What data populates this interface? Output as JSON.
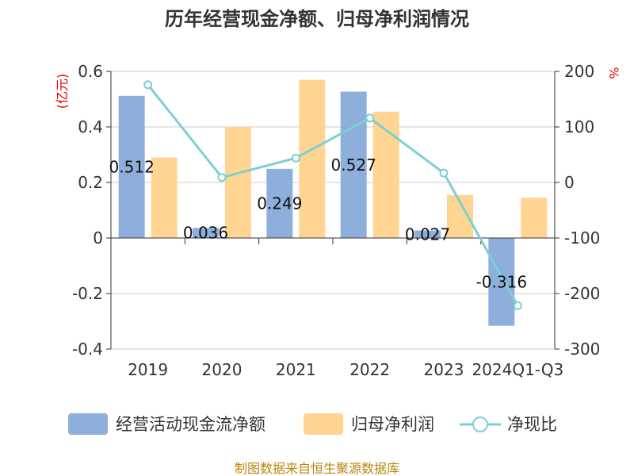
{
  "chart_data": {
    "type": "bar",
    "title": "历年经营现金净额、归母净利润情况",
    "categories": [
      "2019",
      "2020",
      "2021",
      "2022",
      "2023",
      "2024Q1-Q3"
    ],
    "series": [
      {
        "name": "经营活动现金流净额",
        "axis": "left",
        "kind": "bar",
        "color": "#8eaedb",
        "values": [
          0.512,
          0.036,
          0.249,
          0.527,
          0.027,
          -0.316
        ],
        "labels": [
          "0.512",
          "0.036",
          "0.249",
          "0.527",
          "0.027",
          "-0.316"
        ]
      },
      {
        "name": "归母净利润",
        "axis": "left",
        "kind": "bar",
        "color": "#ffd591",
        "values": [
          0.29,
          0.4,
          0.57,
          0.455,
          0.155,
          0.145
        ]
      },
      {
        "name": "净现比",
        "axis": "right",
        "kind": "line",
        "color": "#7ecfd4",
        "values": [
          176,
          9,
          44,
          116,
          17,
          -222
        ]
      }
    ],
    "left_axis": {
      "unit": "(亿元)",
      "ylim": [
        -0.4,
        0.6
      ],
      "ticks": [
        "0.6",
        "0.4",
        "0.2",
        "0",
        "-0.2",
        "-0.4"
      ],
      "tick_values": [
        0.6,
        0.4,
        0.2,
        0,
        -0.2,
        -0.4
      ]
    },
    "right_axis": {
      "unit": "%",
      "ylim": [
        -300,
        200
      ],
      "ticks": [
        "200",
        "100",
        "0",
        "-100",
        "-200",
        "-300"
      ],
      "tick_values": [
        200,
        100,
        0,
        -100,
        -200,
        -300
      ]
    },
    "grid": true,
    "legend": "bottom",
    "source": "制图数据来自恒生聚源数据库"
  }
}
